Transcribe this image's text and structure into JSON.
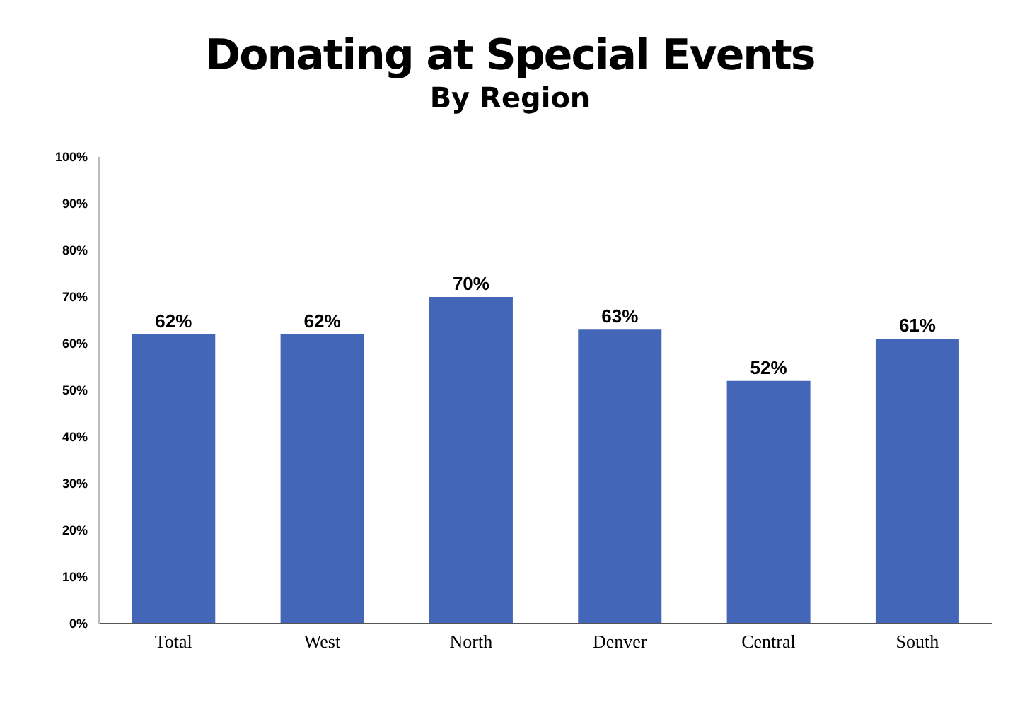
{
  "chart_data": {
    "type": "bar",
    "title": "Donating at Special Events",
    "subtitle": "By Region",
    "categories": [
      "Total",
      "West",
      "North",
      "Denver",
      "Central",
      "South"
    ],
    "values": [
      62,
      62,
      70,
      63,
      52,
      61
    ],
    "value_labels": [
      "62%",
      "62%",
      "70%",
      "63%",
      "52%",
      "61%"
    ],
    "color": "#4466b8",
    "ylim": [
      0,
      100
    ],
    "yticks": [
      {
        "value": 0,
        "label": "0%"
      },
      {
        "value": 10,
        "label": "10%"
      },
      {
        "value": 20,
        "label": "20%"
      },
      {
        "value": 30,
        "label": "30%"
      },
      {
        "value": 40,
        "label": "40%"
      },
      {
        "value": 50,
        "label": "50%"
      },
      {
        "value": 60,
        "label": "60%"
      },
      {
        "value": 70,
        "label": "70%"
      },
      {
        "value": 80,
        "label": "80%"
      },
      {
        "value": 90,
        "label": "90%"
      },
      {
        "value": 100,
        "label": "100%"
      }
    ],
    "grid": false,
    "legend": false
  }
}
